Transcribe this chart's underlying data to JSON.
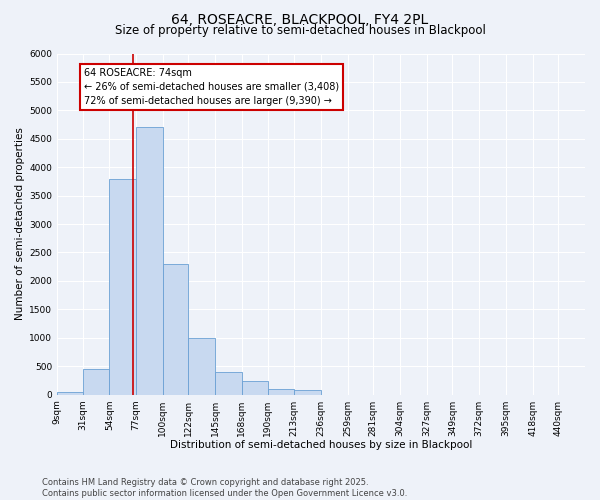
{
  "title": "64, ROSEACRE, BLACKPOOL, FY4 2PL",
  "subtitle": "Size of property relative to semi-detached houses in Blackpool",
  "xlabel": "Distribution of semi-detached houses by size in Blackpool",
  "ylabel": "Number of semi-detached properties",
  "footnote": "Contains HM Land Registry data © Crown copyright and database right 2025.\nContains public sector information licensed under the Open Government Licence v3.0.",
  "bar_color": "#c8d9f0",
  "bar_edge_color": "#6aa0d4",
  "property_line_color": "#cc0000",
  "property_value": 74,
  "property_label": "64 ROSEACRE: 74sqm",
  "pct_smaller": 26,
  "pct_larger": 72,
  "n_smaller": 3408,
  "n_larger": 9390,
  "annotation_box_color": "#cc0000",
  "bins": [
    9,
    31,
    54,
    77,
    100,
    122,
    145,
    168,
    190,
    213,
    236,
    259,
    281,
    304,
    327,
    349,
    372,
    395,
    418,
    440,
    463
  ],
  "counts": [
    50,
    450,
    3800,
    4700,
    2300,
    1000,
    400,
    240,
    100,
    75,
    0,
    0,
    0,
    0,
    0,
    0,
    0,
    0,
    0,
    0
  ],
  "ylim": [
    0,
    6000
  ],
  "yticks": [
    0,
    500,
    1000,
    1500,
    2000,
    2500,
    3000,
    3500,
    4000,
    4500,
    5000,
    5500,
    6000
  ],
  "background_color": "#eef2f9",
  "grid_color": "#ffffff",
  "title_fontsize": 10,
  "subtitle_fontsize": 8.5,
  "axis_label_fontsize": 7.5,
  "tick_fontsize": 6.5,
  "footnote_fontsize": 6
}
